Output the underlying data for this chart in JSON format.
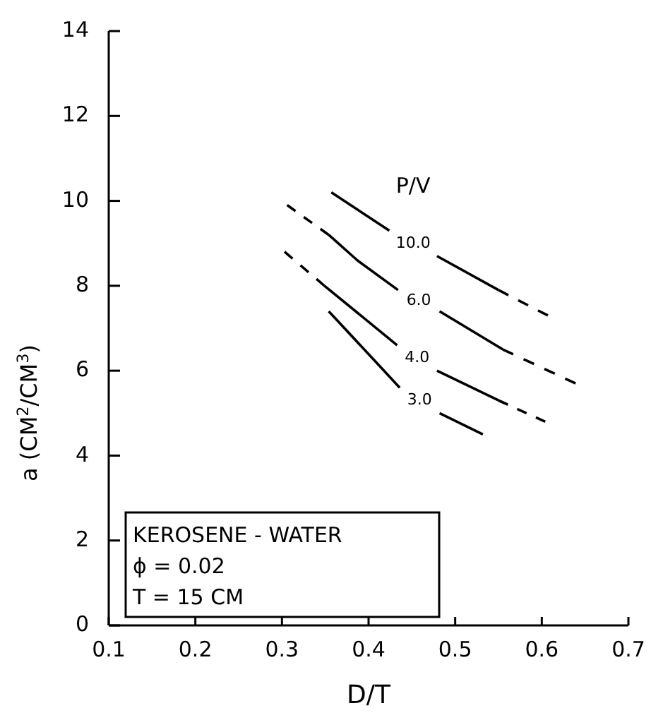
{
  "chart_data": {
    "type": "line",
    "xlabel": "D/T",
    "ylabel": "a (CM$^{2}$/CM$^{3}$)",
    "legend_title": "P/V",
    "xlim": [
      0.1,
      0.7
    ],
    "xticks": [
      0.1,
      0.2,
      0.3,
      0.4,
      0.5,
      0.6,
      0.7
    ],
    "ylim": [
      0,
      14
    ],
    "yticks": [
      0,
      2,
      4,
      6,
      8,
      10,
      12,
      14
    ],
    "grid": false,
    "legend": false,
    "marker": "none",
    "line_style": "solid",
    "color": "#000000",
    "series": [
      {
        "name": "10.0",
        "x": [
          0.357,
          0.424,
          0.45,
          0.479,
          0.55
        ],
        "values": [
          10.2,
          9.3,
          null,
          8.7,
          7.9
        ]
      },
      {
        "name": "6.0",
        "x": [
          0.354,
          0.387,
          0.434,
          0.458,
          0.482,
          0.555
        ],
        "values": [
          9.2,
          8.6,
          7.9,
          null,
          7.4,
          6.5
        ]
      },
      {
        "name": "4.0",
        "x": [
          0.349,
          0.433,
          0.456,
          0.479,
          0.55
        ],
        "values": [
          8.0,
          6.6,
          null,
          6.0,
          5.3
        ]
      },
      {
        "name": "3.0",
        "x": [
          0.354,
          0.436,
          0.459,
          0.482,
          0.532
        ],
        "values": [
          7.4,
          5.6,
          null,
          5.0,
          4.5
        ]
      },
      {
        "x": [
          0.55,
          0.607
        ],
        "values": [
          7.9,
          7.3
        ],
        "line_style": "dashed"
      },
      {
        "x": [
          0.306,
          0.354
        ],
        "values": [
          9.9,
          9.2
        ],
        "line_style": "dashed"
      },
      {
        "x": [
          0.555,
          0.639
        ],
        "values": [
          6.5,
          5.7
        ],
        "line_style": "dashed"
      },
      {
        "x": [
          0.303,
          0.349
        ],
        "values": [
          8.8,
          8.0
        ],
        "line_style": "dashed"
      },
      {
        "x": [
          0.55,
          0.604
        ],
        "values": [
          5.3,
          4.8
        ],
        "line_style": "dashed"
      }
    ],
    "annotations": [
      "KEROSENE - WATER",
      "ϕ = 0.02",
      "T = 15 CM"
    ]
  }
}
